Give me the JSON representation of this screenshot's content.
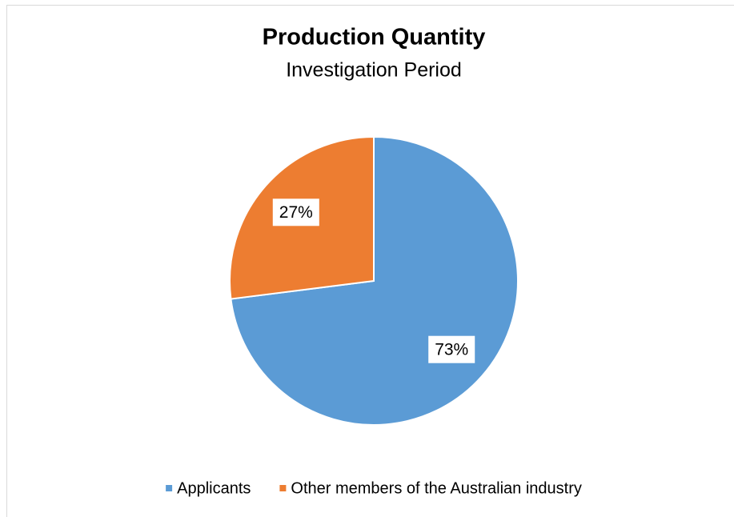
{
  "chart_data": {
    "type": "pie",
    "title": "Production Quantity",
    "subtitle": "Investigation Period",
    "categories": [
      "Applicants",
      "Other members of the Australian industry"
    ],
    "values": [
      73,
      27
    ],
    "value_labels": [
      "73%",
      "27%"
    ],
    "colors": [
      "#5b9bd5",
      "#ed7d31"
    ],
    "legend": "bottom"
  }
}
